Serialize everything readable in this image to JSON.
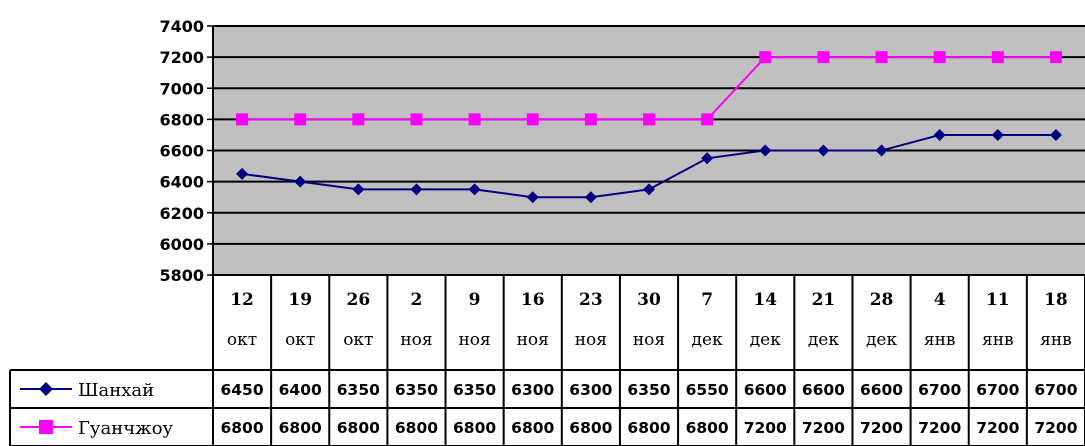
{
  "chart_data": {
    "type": "line",
    "categories": [
      {
        "day": "12",
        "month": "окт"
      },
      {
        "day": "19",
        "month": "окт"
      },
      {
        "day": "26",
        "month": "окт"
      },
      {
        "day": "2",
        "month": "ноя"
      },
      {
        "day": "9",
        "month": "ноя"
      },
      {
        "day": "16",
        "month": "ноя"
      },
      {
        "day": "23",
        "month": "ноя"
      },
      {
        "day": "30",
        "month": "ноя"
      },
      {
        "day": "7",
        "month": "дек"
      },
      {
        "day": "14",
        "month": "дек"
      },
      {
        "day": "21",
        "month": "дек"
      },
      {
        "day": "28",
        "month": "дек"
      },
      {
        "day": "4",
        "month": "янв"
      },
      {
        "day": "11",
        "month": "янв"
      },
      {
        "day": "18",
        "month": "янв"
      }
    ],
    "series": [
      {
        "name": "Шанхай",
        "color": "#000080",
        "marker": "diamond",
        "values": [
          6450,
          6400,
          6350,
          6350,
          6350,
          6300,
          6300,
          6350,
          6550,
          6600,
          6600,
          6600,
          6700,
          6700,
          6700
        ]
      },
      {
        "name": "Гуанчжоу",
        "color": "#FF00FF",
        "marker": "square",
        "values": [
          6800,
          6800,
          6800,
          6800,
          6800,
          6800,
          6800,
          6800,
          6800,
          7200,
          7200,
          7200,
          7200,
          7200,
          7200
        ]
      }
    ],
    "ylim": [
      5800,
      7400
    ],
    "yticks": [
      "7400",
      "7200",
      "7000",
      "6800",
      "6600",
      "6400",
      "6200",
      "6000",
      "5800"
    ],
    "grid": true,
    "legend": "data-table",
    "plot_background": "#C0C0C0"
  }
}
